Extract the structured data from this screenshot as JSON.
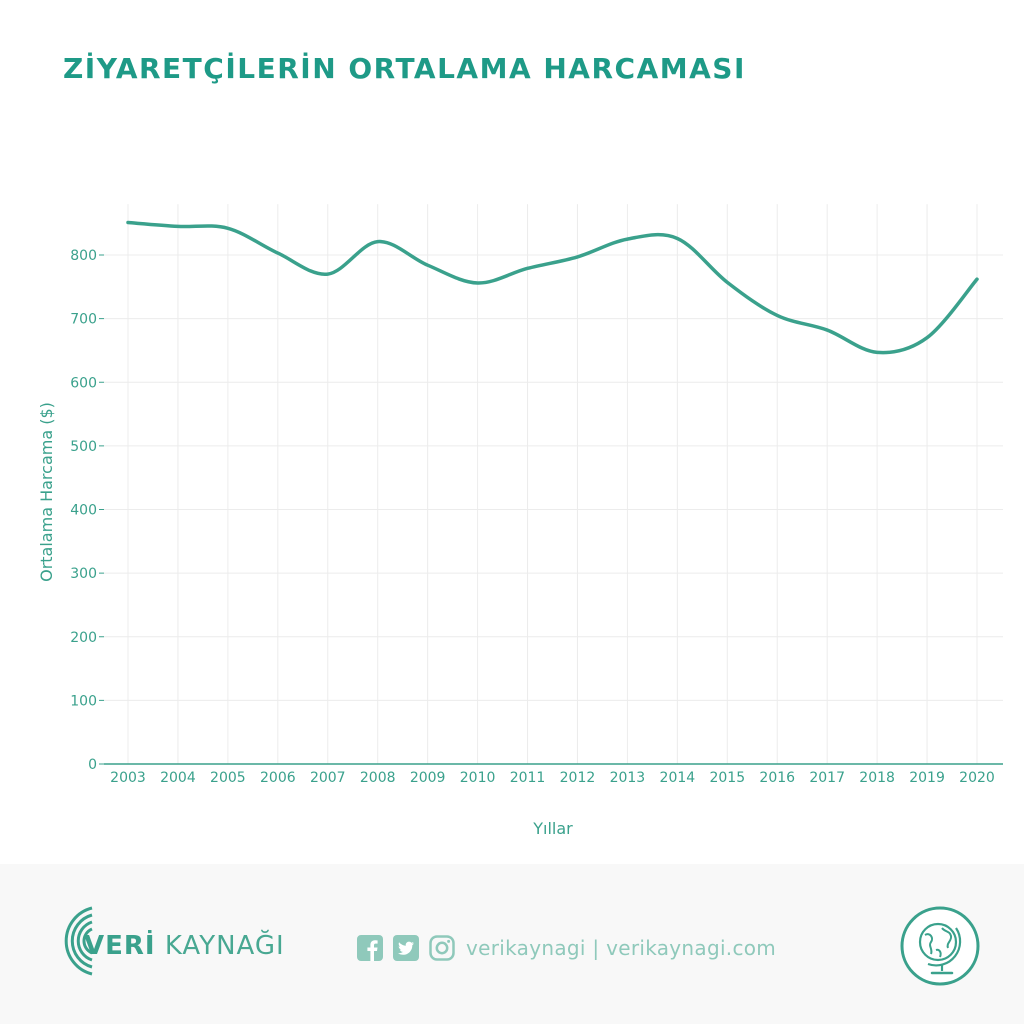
{
  "title": "ZİYARETÇİLERİN ORTALAMA HARCAMASI",
  "chart_data": {
    "type": "line",
    "title": "ZİYARETÇİLERİN ORTALAMA HARCAMASI",
    "xlabel": "Yıllar",
    "ylabel": "Ortalama Harcama ($)",
    "x": [
      2003,
      2004,
      2005,
      2006,
      2007,
      2008,
      2009,
      2010,
      2011,
      2012,
      2013,
      2014,
      2015,
      2016,
      2017,
      2018,
      2019,
      2020
    ],
    "x_tick_labels": [
      "2003",
      "2004",
      "2005",
      "2006",
      "2007",
      "2008",
      "2009",
      "2010",
      "2011",
      "2012",
      "2013",
      "2014",
      "2015",
      "2016",
      "2017",
      "2018",
      "2019",
      "2020"
    ],
    "y_ticks": [
      0,
      100,
      200,
      300,
      400,
      500,
      600,
      700,
      800
    ],
    "y_tick_labels": [
      "0",
      "100",
      "200",
      "300",
      "400",
      "500",
      "600",
      "700",
      "800"
    ],
    "ylim": [
      0,
      880
    ],
    "grid": true,
    "line_shape": "spline",
    "series": [
      {
        "values": [
          851,
          845,
          842,
          803,
          770,
          821,
          784,
          756,
          779,
          797,
          825,
          826,
          757,
          705,
          682,
          647,
          670,
          762
        ],
        "color": "#3aa18c"
      }
    ]
  },
  "footer": {
    "brand_bold": "VERİ",
    "brand_light": " KAYNAĞI",
    "handles": "verikaynagi | verikaynagi.com",
    "icons": [
      "facebook-icon",
      "twitter-icon",
      "instagram-icon",
      "globe-icon"
    ]
  },
  "colors": {
    "accent": "#3aa18c",
    "title": "#1e9a87",
    "grid": "#ececec",
    "footer_bg": "#f8f8f8",
    "footer_text": "#8fc9bb"
  }
}
